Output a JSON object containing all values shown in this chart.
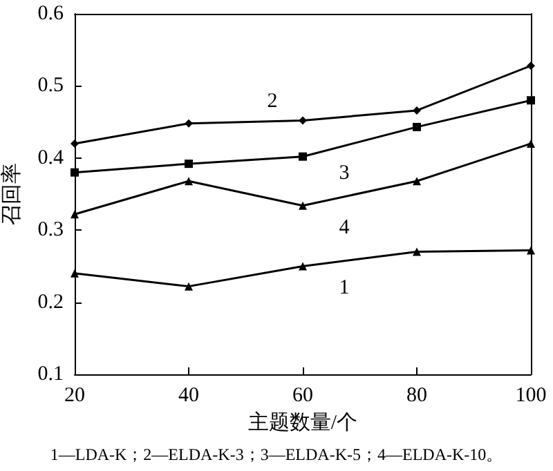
{
  "chart_data": {
    "type": "line",
    "x": [
      20,
      40,
      60,
      80,
      100
    ],
    "xlim": [
      20,
      100
    ],
    "xticks": [
      20,
      40,
      60,
      80,
      100
    ],
    "ylim": [
      0.1,
      0.6
    ],
    "yticks": [
      0.1,
      0.2,
      0.3,
      0.4,
      0.5,
      0.6
    ],
    "xlabel": "主题数量/个",
    "ylabel": "召回率",
    "grid": false,
    "legend": false,
    "line_style": "solid",
    "series": [
      {
        "name": "1",
        "color": "#000000",
        "marker": "triangle",
        "values": [
          0.24,
          0.222,
          0.25,
          0.27,
          0.272
        ]
      },
      {
        "name": "2",
        "color": "#000000",
        "marker": "diamond",
        "values": [
          0.42,
          0.448,
          0.452,
          0.466,
          0.528
        ]
      },
      {
        "name": "3",
        "color": "#000000",
        "marker": "square",
        "values": [
          0.38,
          0.392,
          0.402,
          0.443,
          0.48
        ]
      },
      {
        "name": "4",
        "color": "#000000",
        "marker": "triangle",
        "values": [
          0.322,
          0.368,
          0.334,
          0.368,
          0.42
        ]
      }
    ],
    "annotations": [
      "1—LDA-K；2—ELDA-K-3；3—ELDA-K-5；4—ELDA-K-10。"
    ]
  }
}
